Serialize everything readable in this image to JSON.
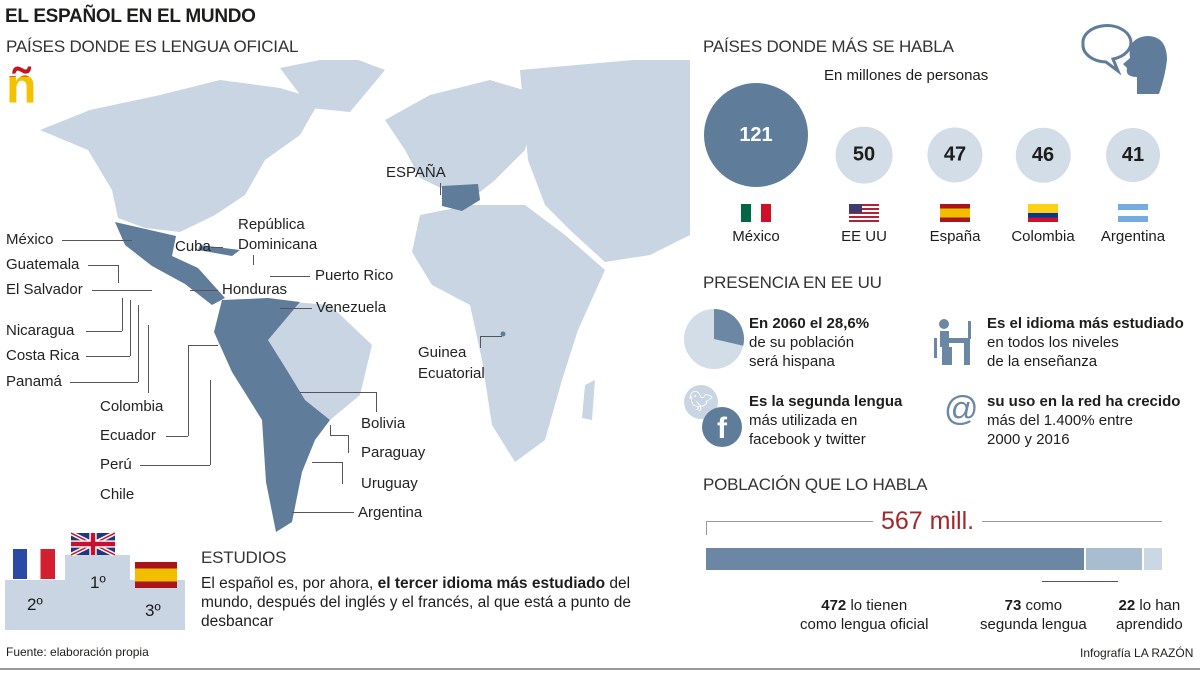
{
  "title": "EL ESPAÑOL EN EL MUNDO",
  "map": {
    "heading": "PAÍSES DONDE ES LENGUA OFICIAL",
    "logo_letter": "ñ",
    "labels": {
      "espana": "ESPAÑA",
      "mexico": "México",
      "guatemala": "Guatemala",
      "el_salvador": "El Salvador",
      "nicaragua": "Nicaragua",
      "costa_rica": "Costa Rica",
      "panama": "Panamá",
      "cuba": "Cuba",
      "rep_dom_1": "República",
      "rep_dom_2": "Dominicana",
      "puerto_rico": "Puerto Rico",
      "honduras": "Honduras",
      "venezuela": "Venezuela",
      "guinea_1": "Guinea",
      "guinea_2": "Ecuatorial",
      "colombia": "Colombia",
      "ecuador": "Ecuador",
      "peru": "Perú",
      "chile": "Chile",
      "bolivia": "Bolivia",
      "paraguay": "Paraguay",
      "uruguay": "Uruguay",
      "argentina": "Argentina"
    },
    "colors": {
      "land": "#c9d5e2",
      "official": "#5f7d9b"
    }
  },
  "studies": {
    "heading": "ESTUDIOS",
    "text_pre": "El español es, por ahora, ",
    "text_bold": "el tercer idioma más estudiado",
    "text_post": " del mundo, después del inglés y el francés, al que está a punto de desbancar",
    "podium": {
      "first": "1º",
      "second": "2º",
      "third": "3º"
    }
  },
  "source": "Fuente: elaboración propia",
  "credit": "Infografía LA RAZÓN",
  "presence": {
    "heading": "PRESENCIA EN EE UU",
    "facts": [
      {
        "bold": "En 2060 el 28,6%",
        "l2": "de su población",
        "l3": "será hispana"
      },
      {
        "bold": "Es el idioma más estudiado",
        "l2": "en todos los niveles",
        "l3": "de la enseñanza"
      },
      {
        "bold": "Es la segunda lengua",
        "l2": "más utilizada en",
        "l3": "facebook y twitter"
      },
      {
        "bold": "su uso en la red ha crecido",
        "l2": "más del 1.400% entre",
        "l3": "2000 y 2016"
      }
    ],
    "hispanic_share_2060": 28.6
  },
  "chart_data": [
    {
      "type": "bubble",
      "title": "PAÍSES DONDE MÁS SE HABLA",
      "subtitle": "En millones de personas",
      "categories": [
        "México",
        "EE UU",
        "España",
        "Colombia",
        "Argentina"
      ],
      "values": [
        121,
        50,
        47,
        46,
        41
      ],
      "colors": {
        "largest": "#5f7d9b",
        "other": "#d3dde8"
      }
    },
    {
      "type": "bar",
      "title": "POBLACIÓN QUE LO HABLA",
      "total_label": "567 mill.",
      "total": 567,
      "series": [
        {
          "name": "lo tienen como lengua oficial",
          "value": 472,
          "color": "#6b87a3",
          "l1": "lo tienen",
          "l2": "como lengua oficial"
        },
        {
          "name": "como segunda lengua",
          "value": 73,
          "color": "#a9bdd1",
          "l1": "como",
          "l2": "segunda lengua"
        },
        {
          "name": "lo han aprendido",
          "value": 22,
          "color": "#cbd7e4",
          "l1": "lo han",
          "l2": "aprendido"
        }
      ]
    }
  ]
}
